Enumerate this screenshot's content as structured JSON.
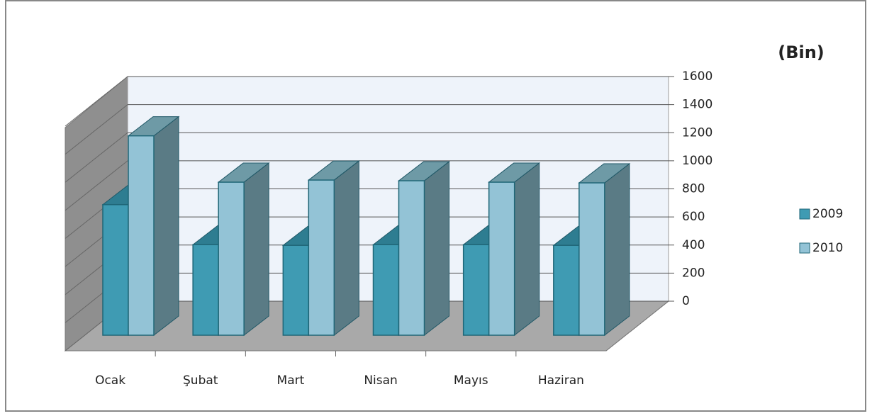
{
  "chart_data": {
    "type": "bar3d",
    "title": "(Bin)",
    "categories": [
      "Ocak",
      "Şubat",
      "Mart",
      "Nisan",
      "Mayıs",
      "Haziran"
    ],
    "series": [
      {
        "name": "2009",
        "color": "#3f9bb3",
        "values": [
          930,
          645,
          640,
          645,
          645,
          640
        ]
      },
      {
        "name": "2010",
        "color": "#93c3d6",
        "values": [
          1420,
          1090,
          1105,
          1100,
          1090,
          1085
        ]
      }
    ],
    "ylim": [
      0,
      1600
    ],
    "yticks": [
      0,
      200,
      400,
      600,
      800,
      1000,
      1200,
      1400,
      1600
    ],
    "grid": true,
    "legend": "right"
  }
}
